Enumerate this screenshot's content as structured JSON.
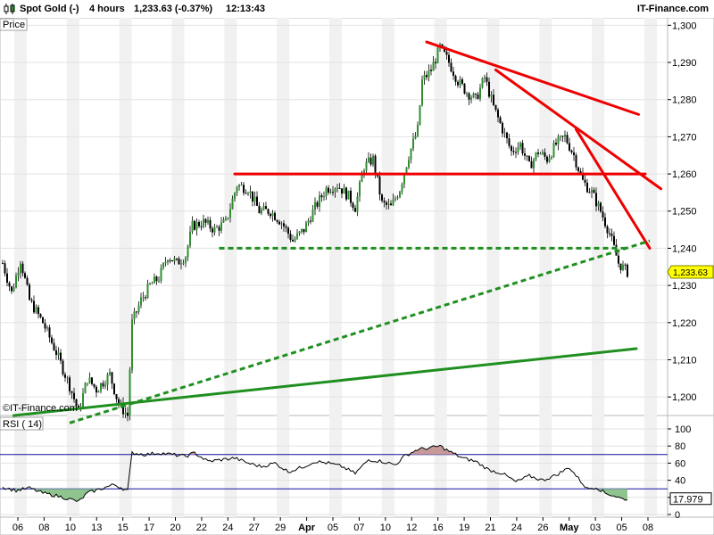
{
  "header": {
    "instrument": "Spot Gold (-)",
    "interval": "4 hours",
    "quote": "1,233.63 (-0.37%)",
    "time": "12:13:43",
    "brand": "IT-Finance.com"
  },
  "colors": {
    "up": "#2f8f2f",
    "down": "#000000",
    "trend_red": "#ee0000",
    "trend_green": "#1f8f1f",
    "price_tag": "#ffff00",
    "rsi_line": "#000000",
    "rsi_over": "#c79a9a",
    "rsi_under": "#8fc48f",
    "rsi_level": "#1010a0"
  },
  "chart_data": [
    {
      "type": "candlestick",
      "title": "Spot Gold (-)",
      "ylabel": "Price",
      "y_ticks": [
        1200,
        1210,
        1220,
        1230,
        1240,
        1250,
        1260,
        1270,
        1280,
        1290,
        1300
      ],
      "y_tick_labels": [
        "1,200",
        "1,210",
        "1,220",
        "1,230",
        "1,240",
        "1,250",
        "1,260",
        "1,270",
        "1,280",
        "1,290",
        "1,300"
      ],
      "ylim": [
        1195,
        1302
      ],
      "x_tick_labels": [
        "06",
        "08",
        "10",
        "13",
        "15",
        "17",
        "20",
        "22",
        "24",
        "27",
        "29",
        "Apr",
        "05",
        "07",
        "10",
        "12",
        "16",
        "19",
        "21",
        "24",
        "26",
        "May",
        "03",
        "05",
        "08"
      ],
      "last_price_label": "1,233.63",
      "watermark": "©IT-Finance.com",
      "close_path": [
        [
          0,
          1236
        ],
        [
          4,
          1228
        ],
        [
          8,
          1237
        ],
        [
          12,
          1226
        ],
        [
          18,
          1220
        ],
        [
          24,
          1212
        ],
        [
          30,
          1203
        ],
        [
          34,
          1196
        ],
        [
          38,
          1205
        ],
        [
          42,
          1202
        ],
        [
          48,
          1206
        ],
        [
          52,
          1198
        ],
        [
          56,
          1195
        ],
        [
          58,
          1220
        ],
        [
          62,
          1226
        ],
        [
          66,
          1230
        ],
        [
          70,
          1232
        ],
        [
          74,
          1238
        ],
        [
          78,
          1236
        ],
        [
          82,
          1238
        ],
        [
          85,
          1246
        ],
        [
          90,
          1247
        ],
        [
          95,
          1245
        ],
        [
          100,
          1247
        ],
        [
          105,
          1257
        ],
        [
          110,
          1256
        ],
        [
          115,
          1250
        ],
        [
          120,
          1250
        ],
        [
          125,
          1247
        ],
        [
          130,
          1242
        ],
        [
          135,
          1245
        ],
        [
          140,
          1251
        ],
        [
          145,
          1256
        ],
        [
          150,
          1257
        ],
        [
          155,
          1254
        ],
        [
          158,
          1251
        ],
        [
          162,
          1262
        ],
        [
          166,
          1264
        ],
        [
          170,
          1252
        ],
        [
          174,
          1251
        ],
        [
          178,
          1256
        ],
        [
          182,
          1265
        ],
        [
          186,
          1272
        ],
        [
          188,
          1285
        ],
        [
          192,
          1288
        ],
        [
          196,
          1294
        ],
        [
          200,
          1290
        ],
        [
          204,
          1285
        ],
        [
          208,
          1282
        ],
        [
          212,
          1280
        ],
        [
          216,
          1286
        ],
        [
          220,
          1278
        ],
        [
          224,
          1272
        ],
        [
          228,
          1266
        ],
        [
          232,
          1268
        ],
        [
          236,
          1262
        ],
        [
          240,
          1266
        ],
        [
          244,
          1264
        ],
        [
          248,
          1268
        ],
        [
          252,
          1270
        ],
        [
          256,
          1265
        ],
        [
          260,
          1258
        ],
        [
          264,
          1255
        ],
        [
          268,
          1250
        ],
        [
          272,
          1244
        ],
        [
          276,
          1236
        ],
        [
          280,
          1233.6
        ]
      ],
      "trendlines": [
        {
          "style": "solid",
          "color": "red",
          "points": [
            [
              1295.5,
              190
            ],
            [
              1276,
              285
            ]
          ]
        },
        {
          "style": "solid",
          "color": "red",
          "points": [
            [
              1288,
              221
            ],
            [
              1256,
              295
            ]
          ]
        },
        {
          "style": "solid",
          "color": "red",
          "points": [
            [
              1272,
              257
            ],
            [
              1240,
              290
            ]
          ]
        },
        {
          "style": "solid",
          "color": "red",
          "points": [
            [
              1260,
              104
            ],
            [
              1260,
              288
            ]
          ]
        },
        {
          "style": "dashed",
          "color": "green",
          "points": [
            [
              1240,
              97
            ],
            [
              1240,
              280
            ]
          ]
        },
        {
          "style": "dashed",
          "color": "green",
          "points": [
            [
              1193,
              30
            ],
            [
              1242,
              290
            ]
          ]
        },
        {
          "style": "solid",
          "color": "green",
          "points": [
            [
              1195,
              5
            ],
            [
              1213,
              284
            ]
          ]
        }
      ]
    },
    {
      "type": "line",
      "title": "RSI ( 14)",
      "current_value_label": "17.979",
      "y_ticks": [
        0,
        20,
        40,
        60,
        80,
        100
      ],
      "y_tick_labels": [
        "0",
        "20",
        "40",
        "60",
        "80",
        "100"
      ],
      "ylim": [
        0,
        100
      ],
      "levels": [
        70,
        30
      ],
      "values_path": [
        [
          0,
          32
        ],
        [
          6,
          28
        ],
        [
          12,
          31
        ],
        [
          18,
          25
        ],
        [
          24,
          22
        ],
        [
          30,
          18
        ],
        [
          34,
          15
        ],
        [
          38,
          25
        ],
        [
          44,
          30
        ],
        [
          50,
          35
        ],
        [
          56,
          28
        ],
        [
          58,
          72
        ],
        [
          64,
          70
        ],
        [
          70,
          72
        ],
        [
          76,
          70
        ],
        [
          82,
          68
        ],
        [
          86,
          72
        ],
        [
          92,
          62
        ],
        [
          98,
          64
        ],
        [
          104,
          66
        ],
        [
          110,
          60
        ],
        [
          116,
          56
        ],
        [
          122,
          60
        ],
        [
          128,
          50
        ],
        [
          134,
          55
        ],
        [
          140,
          62
        ],
        [
          146,
          60
        ],
        [
          152,
          56
        ],
        [
          158,
          48
        ],
        [
          164,
          64
        ],
        [
          170,
          62
        ],
        [
          176,
          58
        ],
        [
          180,
          68
        ],
        [
          186,
          76
        ],
        [
          192,
          78
        ],
        [
          196,
          80
        ],
        [
          200,
          74
        ],
        [
          206,
          66
        ],
        [
          212,
          62
        ],
        [
          218,
          52
        ],
        [
          224,
          48
        ],
        [
          230,
          38
        ],
        [
          236,
          45
        ],
        [
          242,
          40
        ],
        [
          248,
          46
        ],
        [
          254,
          55
        ],
        [
          258,
          42
        ],
        [
          262,
          30
        ],
        [
          266,
          32
        ],
        [
          270,
          25
        ],
        [
          274,
          22
        ],
        [
          278,
          18
        ]
      ]
    }
  ]
}
